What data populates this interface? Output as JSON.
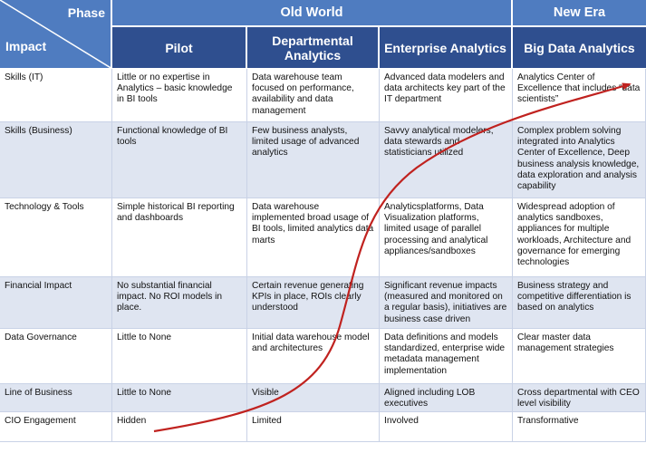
{
  "header": {
    "phase_label": "Phase",
    "impact_label": "Impact",
    "old_world": "Old World",
    "new_era": "New Era",
    "columns": [
      "Pilot",
      "Departmental Analytics",
      "Enterprise Analytics",
      "Big Data Analytics"
    ]
  },
  "rows": [
    {
      "label": "Skills (IT)",
      "cells": [
        "Little or no expertise in Analytics – basic knowledge in BI tools",
        "Data warehouse team focused on performance, availability and data management",
        "Advanced data modelers and data architects key part of the IT department",
        "Analytics Center of Excellence that includes “data scientists”"
      ]
    },
    {
      "label": "Skills (Business)",
      "cells": [
        "Functional knowledge of BI tools",
        "Few business analysts, limited usage of advanced analytics",
        "Savvy analytical modelers, data stewards and statisticians utilized",
        "Complex problem solving integrated into Analytics Center of Excellence, Deep business analysis knowledge, data exploration and analysis capability"
      ]
    },
    {
      "label": "Technology & Tools",
      "cells": [
        "Simple historical BI reporting and dashboards",
        "Data warehouse implemented broad usage of BI tools, limited analytics data marts",
        "Analyticsplatforms, Data Visualization platforms, limited usage of parallel processing and analytical appliances/sandboxes",
        "Widespread adoption of analytics sandboxes, appliances for multiple workloads, Architecture and governance for emerging technologies"
      ]
    },
    {
      "label": "Financial Impact",
      "cells": [
        "No substantial financial impact. No ROI models in place.",
        "Certain revenue generating KPIs in place, ROIs clearly understood",
        "Significant revenue impacts (measured and monitored on a regular basis), initiatives are business case driven",
        "Business strategy and competitive differentiation is based on analytics"
      ]
    },
    {
      "label": "Data Governance",
      "cells": [
        "Little to None",
        "Initial data warehouse model and architectures",
        "Data definitions and models standardized, enterprise wide metadata management implementation",
        "Clear master data management strategies"
      ]
    },
    {
      "label": "Line of Business",
      "cells": [
        "Little to None",
        "Visible",
        "Aligned including LOB executives",
        "Cross departmental with CEO level visibility"
      ]
    },
    {
      "label": "CIO Engagement",
      "cells": [
        "Hidden",
        "Limited",
        "Involved",
        "Transformative"
      ]
    }
  ],
  "colors": {
    "header_light": "#4f7cc0",
    "header_dark": "#2f4f8f",
    "row_shade": "#dfe5f1",
    "curve": "#c0221f"
  }
}
